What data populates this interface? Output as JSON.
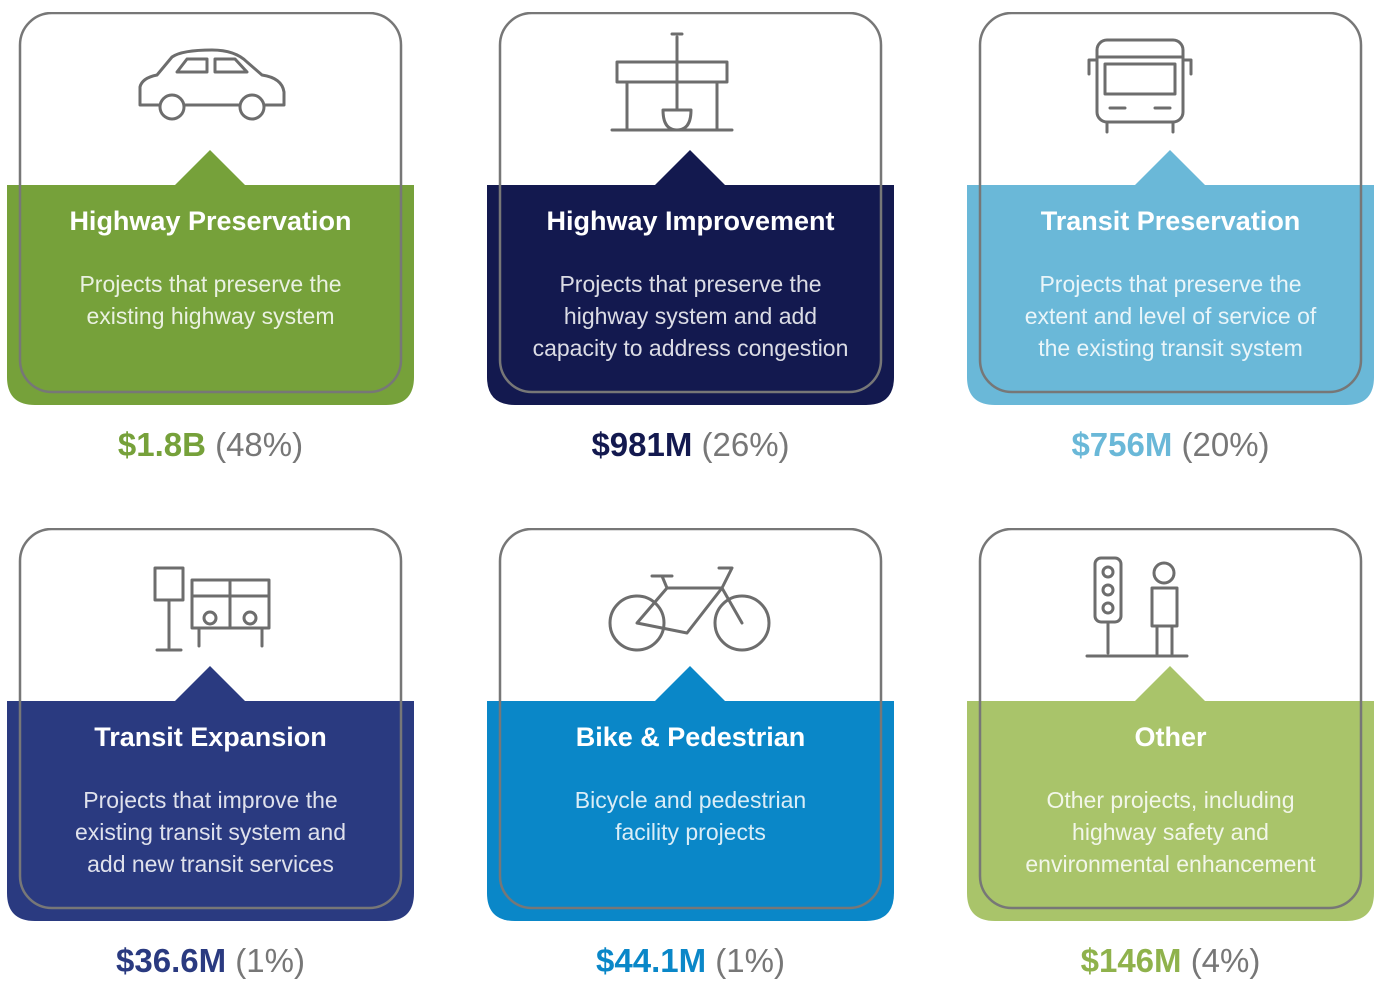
{
  "cards": [
    {
      "title": "Highway Preservation",
      "description": [
        "Projects that preserve the",
        "existing highway system"
      ],
      "amount": "$1.8B",
      "share": "(48%)"
    },
    {
      "title": "Highway Improvement",
      "description": [
        "Projects that preserve the",
        "highway system and add",
        "capacity to address congestion"
      ],
      "amount": "$981M",
      "share": "(26%)"
    },
    {
      "title": "Transit Preservation",
      "description": [
        "Projects that preserve the",
        "extent and level of service of",
        "the existing transit system"
      ],
      "amount": "$756M",
      "share": "(20%)"
    },
    {
      "title": "Transit Expansion",
      "description": [
        "Projects that improve the",
        "existing transit system and",
        "add new transit services"
      ],
      "amount": "$36.6M",
      "share": "(1%)"
    },
    {
      "title": "Bike & Pedestrian",
      "description": [
        "Bicycle and pedestrian",
        "facility projects"
      ],
      "amount": "$44.1M",
      "share": "(1%)"
    },
    {
      "title": "Other",
      "description": [
        "Other projects, including",
        "highway safety and",
        "environmental enhancement"
      ],
      "amount": "$146M",
      "share": "(4%)"
    }
  ]
}
